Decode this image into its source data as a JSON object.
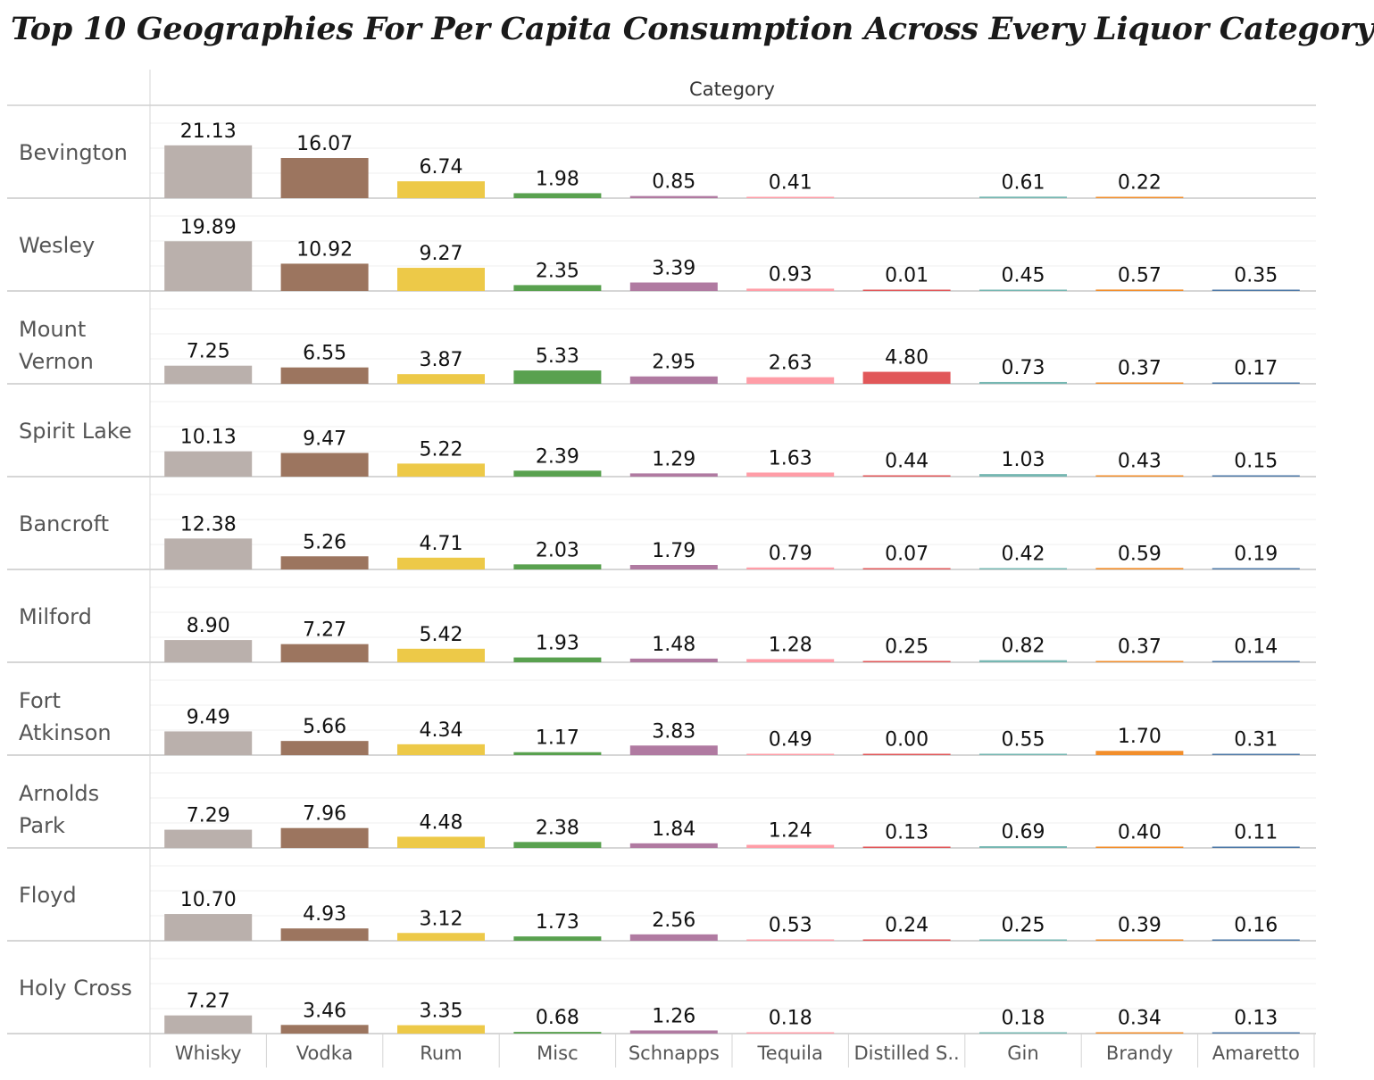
{
  "chart_data": {
    "type": "bar",
    "title": "Top 10 Geographies For Per Capita Consumption Across Every Liquor Category",
    "column_header": "Category",
    "categories": [
      "Whisky",
      "Vodka",
      "Rum",
      "Misc",
      "Schnapps",
      "Tequila",
      "Distilled S..",
      "Gin",
      "Brandy",
      "Amaretto"
    ],
    "colors": [
      "#bab0ac",
      "#9c755f",
      "#edc948",
      "#59a14f",
      "#b07aa1",
      "#ff9da7",
      "#e15759",
      "#76b7b2",
      "#f28e2b",
      "#4e79a7"
    ],
    "rows": [
      {
        "name": "Bevington",
        "values": [
          21.13,
          16.07,
          6.74,
          1.98,
          0.85,
          0.41,
          null,
          0.61,
          0.22,
          null
        ]
      },
      {
        "name": "Wesley",
        "values": [
          19.89,
          10.92,
          9.27,
          2.35,
          3.39,
          0.93,
          0.01,
          0.45,
          0.57,
          0.35
        ]
      },
      {
        "name": "Mount Vernon",
        "values": [
          7.25,
          6.55,
          3.87,
          5.33,
          2.95,
          2.63,
          4.8,
          0.73,
          0.37,
          0.17
        ]
      },
      {
        "name": "Spirit Lake",
        "values": [
          10.13,
          9.47,
          5.22,
          2.39,
          1.29,
          1.63,
          0.44,
          1.03,
          0.43,
          0.15
        ]
      },
      {
        "name": "Bancroft",
        "values": [
          12.38,
          5.26,
          4.71,
          2.03,
          1.79,
          0.79,
          0.07,
          0.42,
          0.59,
          0.19
        ]
      },
      {
        "name": "Milford",
        "values": [
          8.9,
          7.27,
          5.42,
          1.93,
          1.48,
          1.28,
          0.25,
          0.82,
          0.37,
          0.14
        ]
      },
      {
        "name": "Fort Atkinson",
        "values": [
          9.49,
          5.66,
          4.34,
          1.17,
          3.83,
          0.49,
          0.0,
          0.55,
          1.7,
          0.31
        ]
      },
      {
        "name": "Arnolds Park",
        "values": [
          7.29,
          7.96,
          4.48,
          2.38,
          1.84,
          1.24,
          0.13,
          0.69,
          0.4,
          0.11
        ]
      },
      {
        "name": "Floyd",
        "values": [
          10.7,
          4.93,
          3.12,
          1.73,
          2.56,
          0.53,
          0.24,
          0.25,
          0.39,
          0.16
        ]
      },
      {
        "name": "Holy Cross",
        "values": [
          7.27,
          3.46,
          3.35,
          0.68,
          1.26,
          0.18,
          null,
          0.18,
          0.34,
          0.13
        ]
      }
    ],
    "ylim": [
      0,
      35
    ],
    "grid": true,
    "legend": "none"
  }
}
